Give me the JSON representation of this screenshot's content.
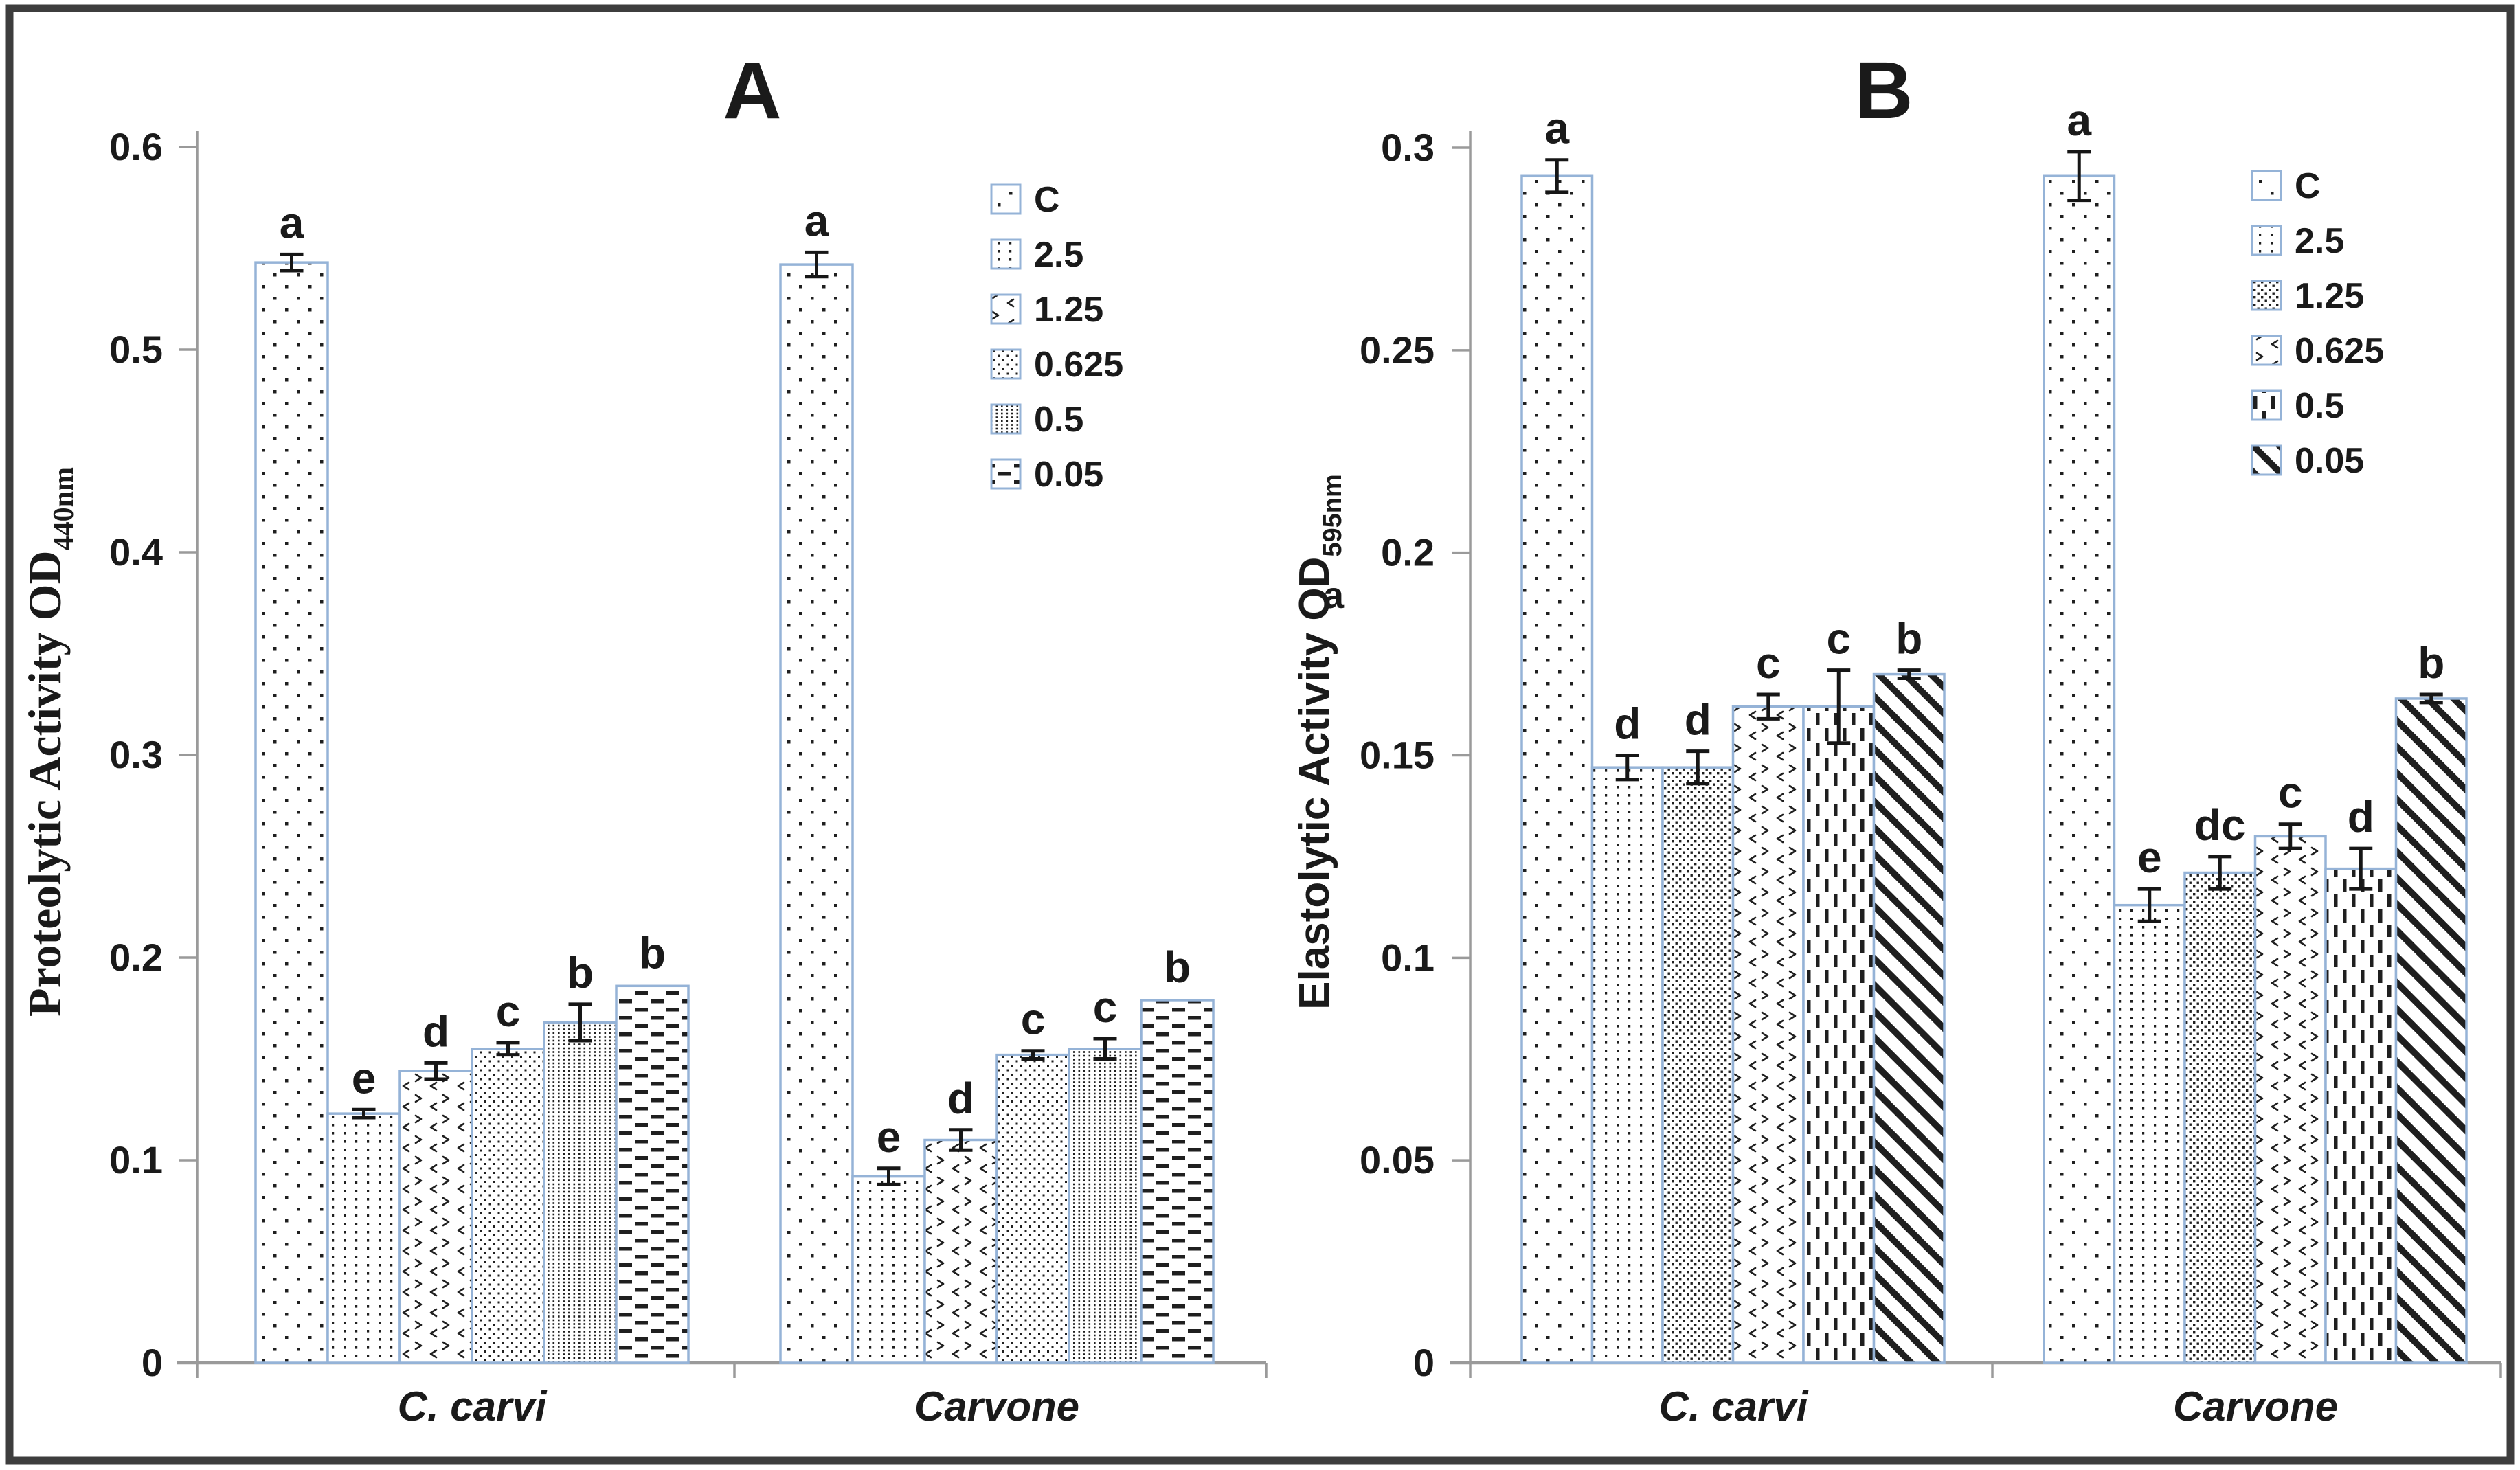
{
  "figure": {
    "colors": {
      "frame": "#3d3d3d",
      "background": "#ffffff",
      "bar_stroke": "#95b3d7",
      "pattern_ink": "#1f1f1f",
      "axis_line": "#9a9a9a",
      "text": "#1a1a1a",
      "error_bar": "#161616"
    }
  },
  "chart_data": [
    {
      "id": "A",
      "type": "bar",
      "title": "A",
      "ylabel_main": "Proteolytic Activity OD",
      "ylabel_sub": "440nm",
      "xlabel": "",
      "ylim": [
        0,
        0.6
      ],
      "y_tick_labels": [
        "0",
        "0.1",
        "0.2",
        "0.3",
        "0.4",
        "0.5",
        "0.6"
      ],
      "y_tick_values": [
        0,
        0.1,
        0.2,
        0.3,
        0.4,
        0.5,
        0.6
      ],
      "grid": "off",
      "legend_position": "top-right-inside",
      "categories": [
        "C. carvi",
        "Carvone"
      ],
      "legend": [
        {
          "label": "C",
          "pattern": "sparse-dots"
        },
        {
          "label": "2.5",
          "pattern": "column-dots"
        },
        {
          "label": "1.25",
          "pattern": "chevrons"
        },
        {
          "label": "0.625",
          "pattern": "checker-dots"
        },
        {
          "label": "0.5",
          "pattern": "dense-column-dots"
        },
        {
          "label": "0.05",
          "pattern": "horizontal-dashes"
        }
      ],
      "groups": [
        {
          "category": "C. carvi",
          "bars": [
            {
              "series": "C",
              "value": 0.543,
              "error": 0.004,
              "letter": "a"
            },
            {
              "series": "2.5",
              "value": 0.123,
              "error": 0.002,
              "letter": "e"
            },
            {
              "series": "1.25",
              "value": 0.144,
              "error": 0.004,
              "letter": "d"
            },
            {
              "series": "0.625",
              "value": 0.155,
              "error": 0.003,
              "letter": "c"
            },
            {
              "series": "0.5",
              "value": 0.168,
              "error": 0.009,
              "letter": "b"
            },
            {
              "series": "0.05",
              "value": 0.186,
              "error": 0.001,
              "letter": "b"
            }
          ]
        },
        {
          "category": "Carvone",
          "bars": [
            {
              "series": "C",
              "value": 0.542,
              "error": 0.006,
              "letter": "a"
            },
            {
              "series": "2.5",
              "value": 0.092,
              "error": 0.004,
              "letter": "e"
            },
            {
              "series": "1.25",
              "value": 0.11,
              "error": 0.005,
              "letter": "d"
            },
            {
              "series": "0.625",
              "value": 0.152,
              "error": 0.002,
              "letter": "c"
            },
            {
              "series": "0.5",
              "value": 0.155,
              "error": 0.005,
              "letter": "c"
            },
            {
              "series": "0.05",
              "value": 0.179,
              "error": 0.001,
              "letter": "b"
            }
          ]
        }
      ]
    },
    {
      "id": "B",
      "type": "bar",
      "title": "B",
      "ylabel_main": "Elastolytic Activity OD",
      "ylabel_sub": "595nm",
      "stray_label": "a",
      "xlabel": "",
      "ylim": [
        0,
        0.3
      ],
      "y_tick_labels": [
        "0",
        "0.05",
        "0.1",
        "0.15",
        "0.2",
        "0.25",
        "0.3"
      ],
      "y_tick_values": [
        0,
        0.05,
        0.1,
        0.15,
        0.2,
        0.25,
        0.3
      ],
      "grid": "off",
      "legend_position": "top-right-inside",
      "categories": [
        "C. carvi",
        "Carvone"
      ],
      "legend": [
        {
          "label": "C",
          "pattern": "sparse-dots"
        },
        {
          "label": "2.5",
          "pattern": "column-dots"
        },
        {
          "label": "1.25",
          "pattern": "fine-checker-dots"
        },
        {
          "label": "0.625",
          "pattern": "chevrons"
        },
        {
          "label": "0.5",
          "pattern": "vertical-dashes"
        },
        {
          "label": "0.05",
          "pattern": "diag-stripes"
        }
      ],
      "groups": [
        {
          "category": "C. carvi",
          "bars": [
            {
              "series": "C",
              "value": 0.293,
              "error": 0.004,
              "letter": "a"
            },
            {
              "series": "2.5",
              "value": 0.147,
              "error": 0.003,
              "letter": "d"
            },
            {
              "series": "1.25",
              "value": 0.147,
              "error": 0.004,
              "letter": "d"
            },
            {
              "series": "0.625",
              "value": 0.162,
              "error": 0.003,
              "letter": "c"
            },
            {
              "series": "0.5",
              "value": 0.162,
              "error": 0.009,
              "letter": "c"
            },
            {
              "series": "0.05",
              "value": 0.17,
              "error": 0.001,
              "letter": "b"
            }
          ]
        },
        {
          "category": "Carvone",
          "bars": [
            {
              "series": "C",
              "value": 0.293,
              "error": 0.006,
              "letter": "a"
            },
            {
              "series": "2.5",
              "value": 0.113,
              "error": 0.004,
              "letter": "e"
            },
            {
              "series": "1.25",
              "value": 0.121,
              "error": 0.004,
              "letter": "dc"
            },
            {
              "series": "0.625",
              "value": 0.13,
              "error": 0.003,
              "letter": "c"
            },
            {
              "series": "0.5",
              "value": 0.122,
              "error": 0.005,
              "letter": "d"
            },
            {
              "series": "0.05",
              "value": 0.164,
              "error": 0.001,
              "letter": "b"
            }
          ]
        }
      ]
    }
  ]
}
